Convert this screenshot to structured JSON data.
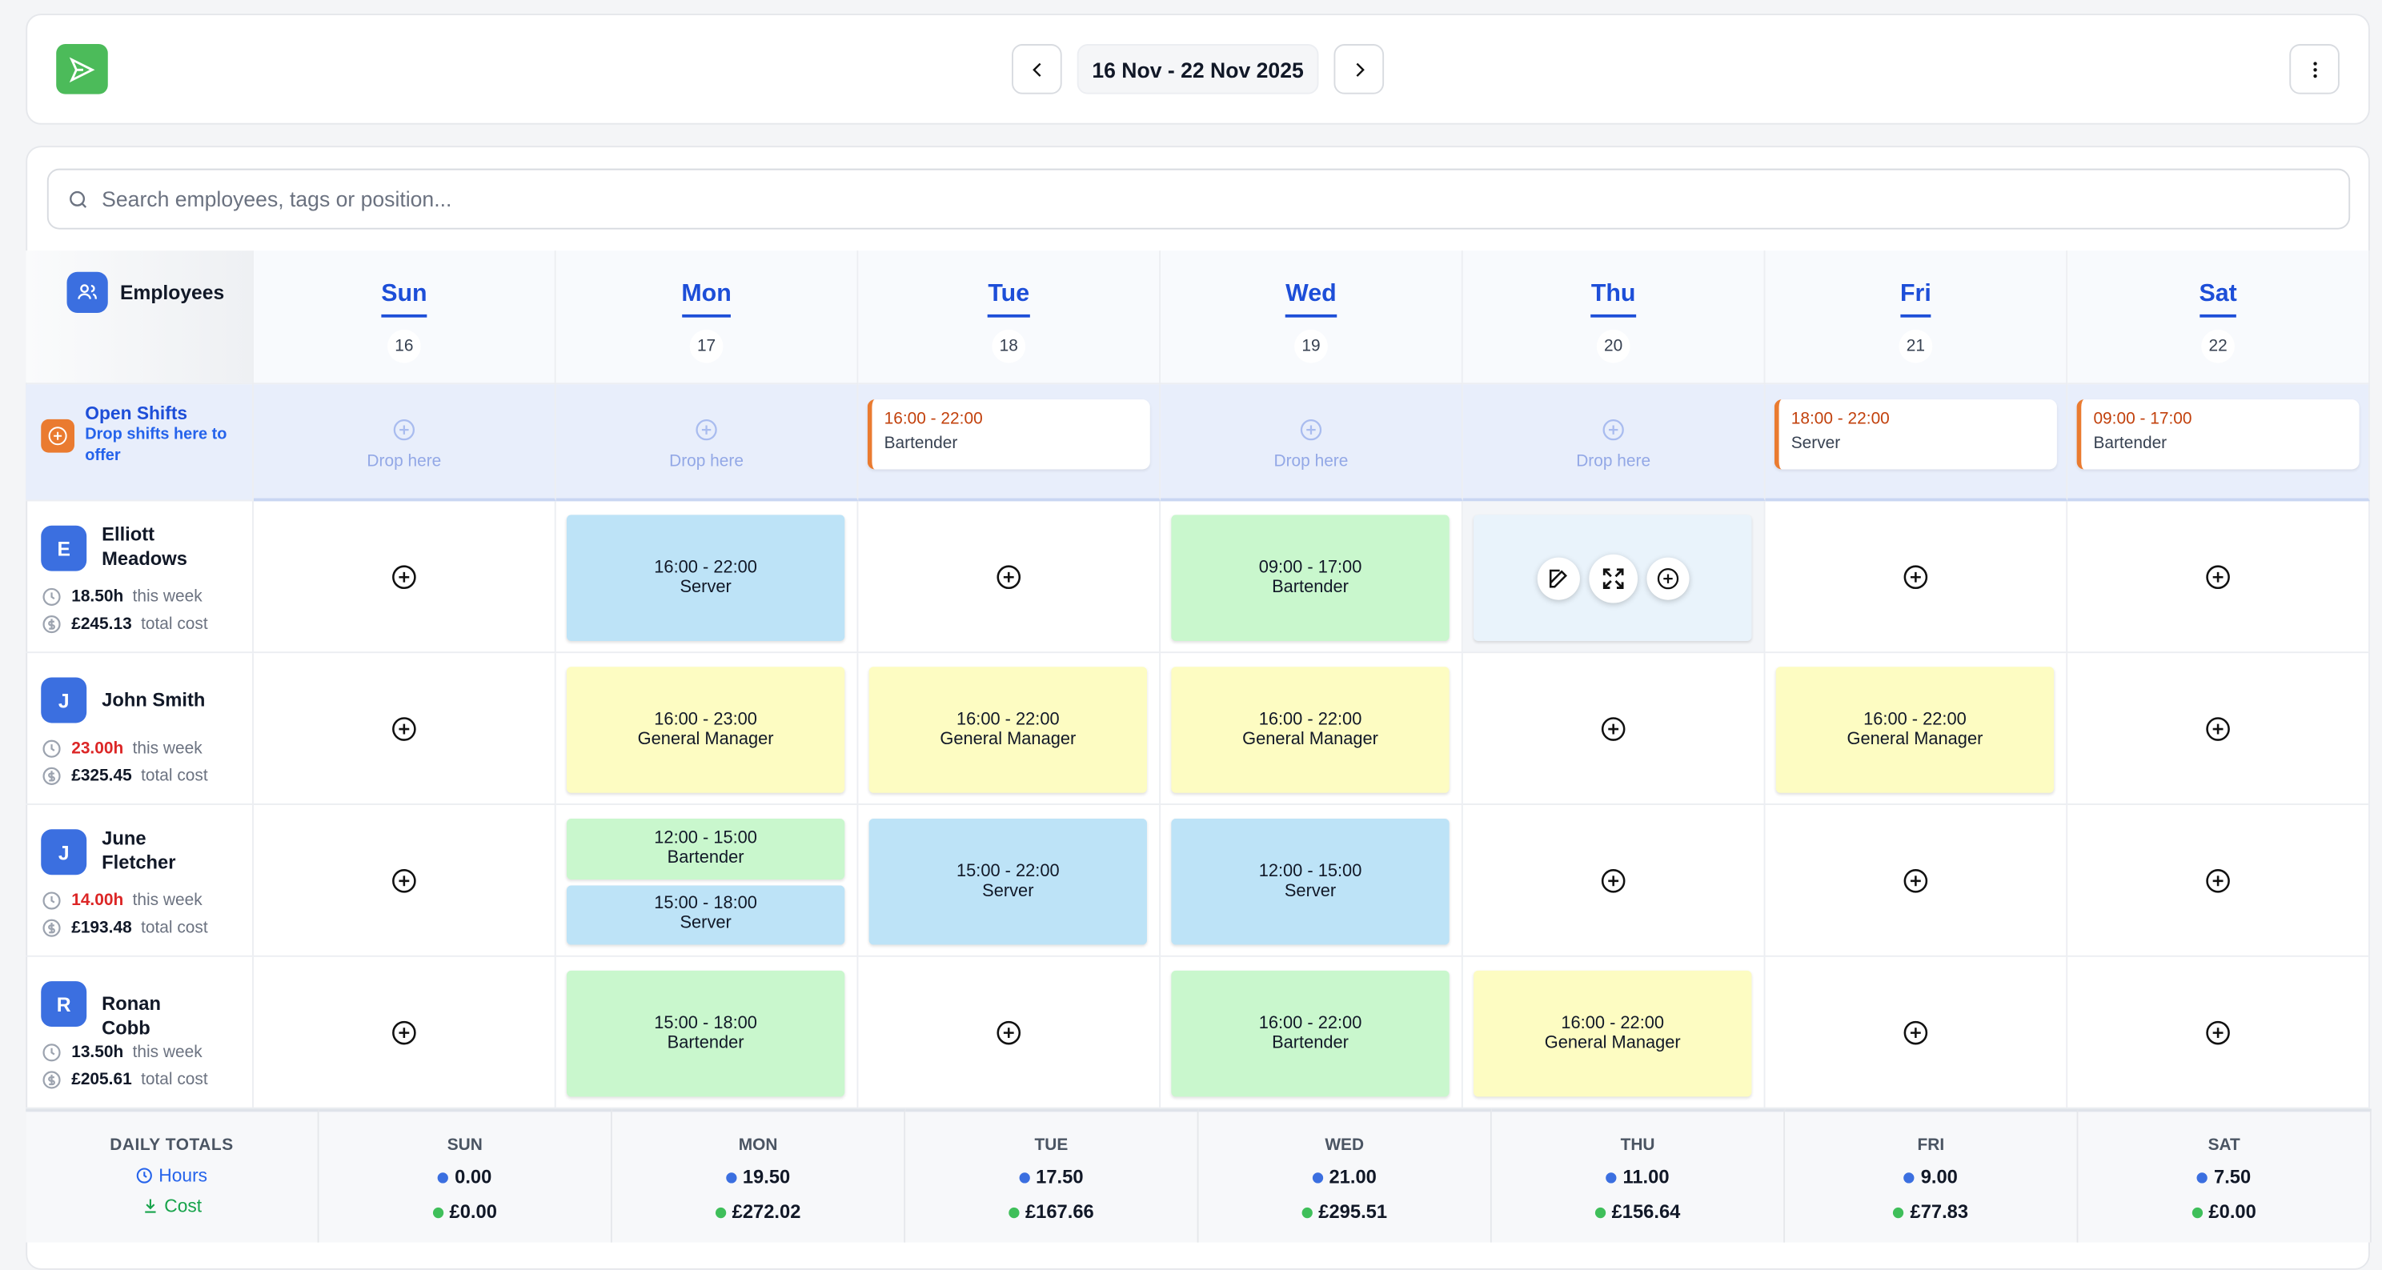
{
  "header": {
    "date_range": "16 Nov - 22 Nov 2025"
  },
  "search": {
    "placeholder": "Search employees, tags or position..."
  },
  "employees_label": "Employees",
  "days": [
    {
      "name": "Sun",
      "date": "16"
    },
    {
      "name": "Mon",
      "date": "17"
    },
    {
      "name": "Tue",
      "date": "18"
    },
    {
      "name": "Wed",
      "date": "19"
    },
    {
      "name": "Thu",
      "date": "20"
    },
    {
      "name": "Fri",
      "date": "21"
    },
    {
      "name": "Sat",
      "date": "22"
    }
  ],
  "open_shifts": {
    "title": "Open Shifts",
    "subtitle": "Drop shifts here to offer",
    "cells": [
      {
        "drop": "Drop here"
      },
      {
        "drop": "Drop here"
      },
      {
        "time": "16:00 - 22:00",
        "role": "Bartender"
      },
      {
        "drop": "Drop here"
      },
      {
        "drop": "Drop here"
      },
      {
        "time": "18:00 - 22:00",
        "role": "Server"
      },
      {
        "time": "09:00 - 17:00",
        "role": "Bartender"
      }
    ]
  },
  "hover_cell": [
    0,
    4
  ],
  "employees": [
    {
      "initial": "E",
      "name": "Elliott Meadows",
      "hours": "18.50h",
      "hours_label": "this week",
      "hours_color": "#111827",
      "cost": "£245.13",
      "cost_label": "total cost",
      "days": [
        [],
        [
          {
            "time": "16:00 - 22:00",
            "role": "Server",
            "color": "#bde3f7"
          }
        ],
        [],
        [
          {
            "time": "09:00 - 17:00",
            "role": "Bartender",
            "color": "#c9f7cd"
          }
        ],
        [],
        [],
        []
      ]
    },
    {
      "initial": "J",
      "name": "John Smith",
      "hours": "23.00h",
      "hours_label": "this week",
      "hours_color": "#dc2626",
      "cost": "£325.45",
      "cost_label": "total cost",
      "days": [
        [],
        [
          {
            "time": "16:00 - 23:00",
            "role": "General Manager",
            "color": "#fdfcc2"
          }
        ],
        [
          {
            "time": "16:00 - 22:00",
            "role": "General Manager",
            "color": "#fdfcc2"
          }
        ],
        [
          {
            "time": "16:00 - 22:00",
            "role": "General Manager",
            "color": "#fdfcc2"
          }
        ],
        [],
        [
          {
            "time": "16:00 - 22:00",
            "role": "General Manager",
            "color": "#fdfcc2"
          }
        ],
        []
      ]
    },
    {
      "initial": "J",
      "name": "June Fletcher",
      "hours": "14.00h",
      "hours_label": "this week",
      "hours_color": "#dc2626",
      "cost": "£193.48",
      "cost_label": "total cost",
      "days": [
        [],
        [
          {
            "time": "12:00 - 15:00",
            "role": "Bartender",
            "color": "#c9f7cd"
          },
          {
            "time": "15:00 - 18:00",
            "role": "Server",
            "color": "#bde3f7"
          }
        ],
        [
          {
            "time": "15:00 - 22:00",
            "role": "Server",
            "color": "#bde3f7"
          }
        ],
        [
          {
            "time": "12:00 - 15:00",
            "role": "Server",
            "color": "#bde3f7"
          }
        ],
        [],
        [],
        []
      ]
    },
    {
      "initial": "R",
      "name": "Ronan Cobb",
      "hours": "13.50h",
      "hours_label": "this week",
      "hours_color": "#111827",
      "cost": "£205.61",
      "cost_label": "total cost",
      "days": [
        [],
        [
          {
            "time": "15:00 - 18:00",
            "role": "Bartender",
            "color": "#c9f7cd"
          }
        ],
        [],
        [
          {
            "time": "16:00 - 22:00",
            "role": "Bartender",
            "color": "#c9f7cd"
          }
        ],
        [
          {
            "time": "16:00 - 22:00",
            "role": "General Manager",
            "color": "#fdfcc2"
          }
        ],
        [],
        []
      ]
    }
  ],
  "totals": {
    "title": "DAILY TOTALS",
    "hours_label": "Hours",
    "cost_label": "Cost",
    "days": [
      {
        "name": "SUN",
        "hours": "0.00",
        "cost": "£0.00"
      },
      {
        "name": "MON",
        "hours": "19.50",
        "cost": "£272.02"
      },
      {
        "name": "TUE",
        "hours": "17.50",
        "cost": "£167.66"
      },
      {
        "name": "WED",
        "hours": "21.00",
        "cost": "£295.51"
      },
      {
        "name": "THU",
        "hours": "11.00",
        "cost": "£156.64"
      },
      {
        "name": "FRI",
        "hours": "9.00",
        "cost": "£77.83"
      },
      {
        "name": "SAT",
        "hours": "7.50",
        "cost": "£0.00"
      }
    ]
  }
}
